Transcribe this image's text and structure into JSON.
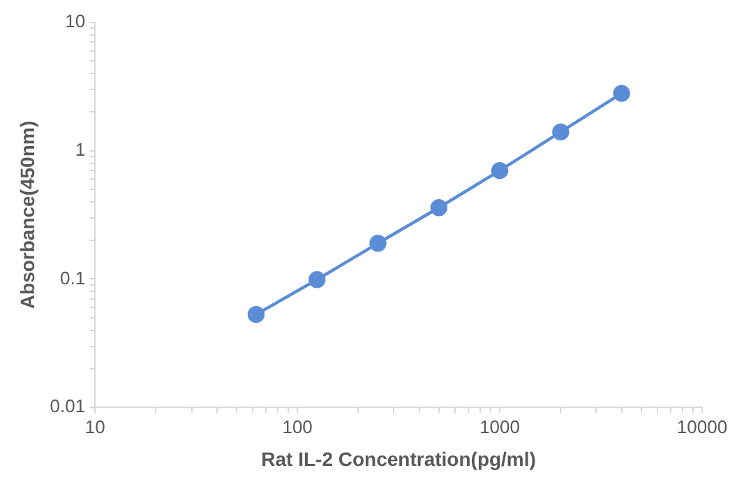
{
  "chart_data": {
    "type": "line",
    "xlabel": "Rat IL-2 Concentration(pg/ml)",
    "ylabel": "Absorbance(450nm)",
    "x": [
      62.5,
      125,
      250,
      500,
      1000,
      2000,
      4000
    ],
    "series": [
      {
        "color": "#5b8dd6",
        "values": [
          0.053,
          0.099,
          0.19,
          0.36,
          0.7,
          1.4,
          2.8
        ]
      }
    ],
    "log": "xy",
    "xlim": [
      10,
      10000
    ],
    "ylim": [
      0.01,
      10
    ],
    "xticks": [
      10,
      {
        "value": 20,
        "label": null
      },
      {
        "value": 30,
        "label": null
      },
      {
        "value": 40,
        "label": null
      },
      {
        "value": 50,
        "label": null
      },
      {
        "value": 60,
        "label": null
      },
      {
        "value": 70,
        "label": null
      },
      {
        "value": 80,
        "label": null
      },
      {
        "value": 90,
        "label": null
      },
      100,
      {
        "value": 200,
        "label": null
      },
      {
        "value": 300,
        "label": null
      },
      {
        "value": 400,
        "label": null
      },
      {
        "value": 500,
        "label": null
      },
      {
        "value": 600,
        "label": null
      },
      {
        "value": 700,
        "label": null
      },
      {
        "value": 800,
        "label": null
      },
      {
        "value": 900,
        "label": null
      },
      1000,
      {
        "value": 2000,
        "label": null
      },
      {
        "value": 3000,
        "label": null
      },
      {
        "value": 4000,
        "label": null
      },
      {
        "value": 5000,
        "label": null
      },
      {
        "value": 6000,
        "label": null
      },
      {
        "value": 7000,
        "label": null
      },
      {
        "value": 8000,
        "label": null
      },
      {
        "value": 9000,
        "label": null
      },
      10000
    ],
    "yticks": [
      0.01,
      {
        "value": 0.02,
        "label": null
      },
      {
        "value": 0.03,
        "label": null
      },
      {
        "value": 0.04,
        "label": null
      },
      {
        "value": 0.05,
        "label": null
      },
      {
        "value": 0.06,
        "label": null
      },
      {
        "value": 0.07,
        "label": null
      },
      {
        "value": 0.08,
        "label": null
      },
      {
        "value": 0.09,
        "label": null
      },
      0.1,
      {
        "value": 0.2,
        "label": null
      },
      {
        "value": 0.3,
        "label": null
      },
      {
        "value": 0.4,
        "label": null
      },
      {
        "value": 0.5,
        "label": null
      },
      {
        "value": 0.6,
        "label": null
      },
      {
        "value": 0.7,
        "label": null
      },
      {
        "value": 0.8,
        "label": null
      },
      {
        "value": 0.9,
        "label": null
      },
      1,
      {
        "value": 2,
        "label": null
      },
      {
        "value": 3,
        "label": null
      },
      {
        "value": 4,
        "label": null
      },
      {
        "value": 5,
        "label": null
      },
      {
        "value": 6,
        "label": null
      },
      {
        "value": 7,
        "label": null
      },
      {
        "value": 8,
        "label": null
      },
      {
        "value": 9,
        "label": null
      },
      10
    ],
    "grid": false,
    "legend": false,
    "marker": "circle",
    "line_style": "solid"
  }
}
